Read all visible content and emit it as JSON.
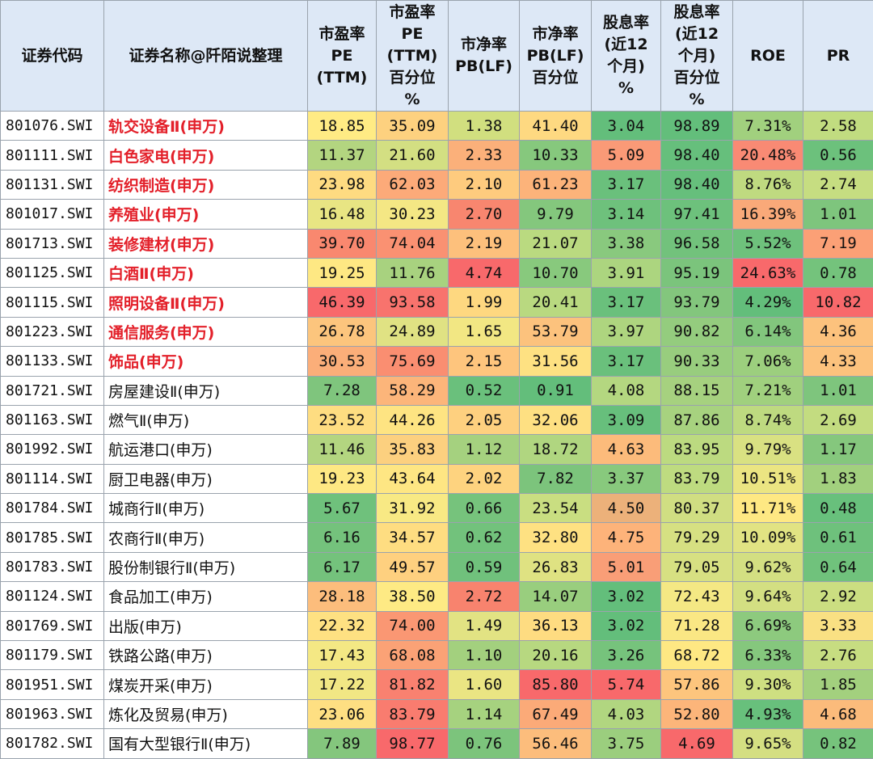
{
  "table": {
    "headers": [
      "证券代码",
      "证券名称@阡陌说整理",
      "市盈率\nPE\n(TTM)",
      "市盈率\nPE\n(TTM)\n百分位\n%",
      "市净率\nPB(LF)",
      "市净率\nPB(LF)\n百分位",
      "股息率\n(近12\n个月)\n%",
      "股息率\n(近12\n个月)\n百分位\n%",
      "ROE",
      "PR"
    ],
    "rows": [
      {
        "code": "801076.SWI",
        "name": "轨交设备Ⅱ(申万)",
        "highlight": true,
        "cells": [
          "18.85",
          "35.09",
          "1.38",
          "41.40",
          "3.04",
          "98.89",
          "7.31%",
          "2.58"
        ],
        "colors": [
          "#ffeb84",
          "#fdd17f",
          "#d1df7f",
          "#fed981",
          "#63be7b",
          "#63be7b",
          "#a1d07e",
          "#c1dc80"
        ]
      },
      {
        "code": "801111.SWI",
        "name": "白色家电(申万)",
        "highlight": true,
        "cells": [
          "11.37",
          "21.60",
          "2.33",
          "10.33",
          "5.09",
          "98.40",
          "20.48%",
          "0.56"
        ],
        "colors": [
          "#b3d580",
          "#d3df82",
          "#fbb07a",
          "#86c87d",
          "#fa9a77",
          "#66bf7c",
          "#f98a74",
          "#6cc17c"
        ]
      },
      {
        "code": "801131.SWI",
        "name": "纺织制造(申万)",
        "highlight": true,
        "cells": [
          "23.98",
          "62.03",
          "2.10",
          "61.23",
          "3.17",
          "98.40",
          "8.76%",
          "2.74"
        ],
        "colors": [
          "#fedb81",
          "#fcaa79",
          "#fecb7e",
          "#fcb37a",
          "#6ac07c",
          "#66bf7c",
          "#bfda80",
          "#c6dd81"
        ]
      },
      {
        "code": "801017.SWI",
        "name": "养殖业(申万)",
        "highlight": true,
        "cells": [
          "16.48",
          "30.23",
          "2.70",
          "9.79",
          "3.14",
          "97.41",
          "16.39%",
          "1.01"
        ],
        "colors": [
          "#e8e583",
          "#f4e784",
          "#f8866f",
          "#84c77d",
          "#6ec17c",
          "#6dc17c",
          "#f9a979",
          "#7ec57d"
        ]
      },
      {
        "code": "801713.SWI",
        "name": "装修建材(申万)",
        "highlight": true,
        "cells": [
          "39.70",
          "74.04",
          "2.19",
          "21.07",
          "3.38",
          "96.58",
          "5.52%",
          "7.19"
        ],
        "colors": [
          "#f9886f",
          "#fa9172",
          "#fdc07c",
          "#bada80",
          "#89c97e",
          "#72c27c",
          "#6ec17c",
          "#fba076"
        ]
      },
      {
        "code": "801125.SWI",
        "name": "白酒Ⅱ(申万)",
        "highlight": true,
        "cells": [
          "19.25",
          "11.76",
          "4.74",
          "10.70",
          "3.91",
          "95.19",
          "24.63%",
          "0.78"
        ],
        "colors": [
          "#fee883",
          "#a8d27f",
          "#f8696b",
          "#88c97d",
          "#acd57f",
          "#7bc47c",
          "#f8696b",
          "#74c37c"
        ]
      },
      {
        "code": "801115.SWI",
        "name": "照明设备Ⅱ(申万)",
        "highlight": true,
        "cells": [
          "46.39",
          "93.58",
          "1.99",
          "20.41",
          "3.17",
          "93.79",
          "4.29%",
          "10.82"
        ],
        "colors": [
          "#f8696b",
          "#f8736d",
          "#fed880",
          "#b9d980",
          "#6ac07c",
          "#83c67d",
          "#63be7b",
          "#f8696b"
        ]
      },
      {
        "code": "801223.SWI",
        "name": "通信服务(申万)",
        "highlight": true,
        "cells": [
          "26.78",
          "24.89",
          "1.65",
          "53.79",
          "3.97",
          "90.82",
          "6.14%",
          "4.36"
        ],
        "colors": [
          "#fcc57d",
          "#e0e283",
          "#f2e783",
          "#fcc27d",
          "#aed57f",
          "#94cc7e",
          "#82c67d",
          "#fcc27d"
        ]
      },
      {
        "code": "801133.SWI",
        "name": "饰品(申万)",
        "highlight": true,
        "cells": [
          "30.53",
          "75.69",
          "2.15",
          "31.56",
          "3.17",
          "90.33",
          "7.06%",
          "4.33"
        ],
        "colors": [
          "#fbae79",
          "#fa8e71",
          "#fec57d",
          "#fee182",
          "#6ac07c",
          "#98cd7e",
          "#9ccf7e",
          "#fcc27d"
        ]
      },
      {
        "code": "801721.SWI",
        "name": "房屋建设Ⅱ(申万)",
        "highlight": false,
        "cells": [
          "7.28",
          "58.29",
          "0.52",
          "0.91",
          "4.08",
          "88.15",
          "7.21%",
          "1.01"
        ],
        "colors": [
          "#7fc57d",
          "#fcb57a",
          "#6ac07c",
          "#63be7b",
          "#b4d780",
          "#a6d17f",
          "#a0d07e",
          "#7ec57d"
        ]
      },
      {
        "code": "801163.SWI",
        "name": "燃气Ⅱ(申万)",
        "highlight": false,
        "cells": [
          "23.52",
          "44.26",
          "2.05",
          "32.06",
          "3.09",
          "87.86",
          "8.74%",
          "2.69"
        ],
        "colors": [
          "#fedd81",
          "#fee482",
          "#fed07f",
          "#fee082",
          "#67bf7c",
          "#a7d27f",
          "#beda80",
          "#c3dc80"
        ]
      },
      {
        "code": "801992.SWI",
        "name": "航运港口(申万)",
        "highlight": false,
        "cells": [
          "11.46",
          "35.83",
          "1.12",
          "18.72",
          "4.63",
          "83.95",
          "9.79%",
          "1.17"
        ],
        "colors": [
          "#b3d580",
          "#fcd07f",
          "#a5d17f",
          "#b0d680",
          "#fcbb7b",
          "#bcda80",
          "#d9e182",
          "#85c77d"
        ]
      },
      {
        "code": "801114.SWI",
        "name": "厨卫电器(申万)",
        "highlight": false,
        "cells": [
          "19.23",
          "43.64",
          "2.02",
          "7.82",
          "3.37",
          "83.79",
          "10.51%",
          "1.83"
        ],
        "colors": [
          "#fee883",
          "#fee683",
          "#fed37f",
          "#7cc47c",
          "#88c97d",
          "#bedb80",
          "#ebe582",
          "#a2d07e"
        ]
      },
      {
        "code": "801784.SWI",
        "name": "城商行Ⅱ(申万)",
        "highlight": false,
        "cells": [
          "5.67",
          "31.92",
          "0.66",
          "23.54",
          "4.50",
          "80.37",
          "11.71%",
          "0.48"
        ],
        "colors": [
          "#6fc17c",
          "#f8e984",
          "#76c37c",
          "#c9de81",
          "#ecb17a",
          "#d0de82",
          "#fee883",
          "#68c07c"
        ]
      },
      {
        "code": "801785.SWI",
        "name": "农商行Ⅱ(申万)",
        "highlight": false,
        "cells": [
          "6.16",
          "34.57",
          "0.62",
          "32.80",
          "4.75",
          "79.29",
          "10.09%",
          "0.61"
        ],
        "colors": [
          "#74c27c",
          "#fedd81",
          "#72c27c",
          "#fee182",
          "#fdb37a",
          "#d6e082",
          "#e1e383",
          "#6ec17c"
        ]
      },
      {
        "code": "801783.SWI",
        "name": "股份制银行Ⅱ(申万)",
        "highlight": false,
        "cells": [
          "6.17",
          "49.57",
          "0.59",
          "26.83",
          "5.01",
          "79.05",
          "9.62%",
          "0.64"
        ],
        "colors": [
          "#74c27c",
          "#fed07f",
          "#70c17c",
          "#dfe282",
          "#f99e77",
          "#d7e082",
          "#d3df82",
          "#70c27c"
        ]
      },
      {
        "code": "801124.SWI",
        "name": "食品加工(申万)",
        "highlight": false,
        "cells": [
          "28.18",
          "38.50",
          "2.72",
          "14.07",
          "3.02",
          "72.43",
          "9.64%",
          "2.92"
        ],
        "colors": [
          "#fcbd7c",
          "#feea84",
          "#f8836e",
          "#99ce7e",
          "#63be7b",
          "#f4e884",
          "#d3df82",
          "#cbde81"
        ]
      },
      {
        "code": "801769.SWI",
        "name": "出版(申万)",
        "highlight": false,
        "cells": [
          "22.32",
          "74.00",
          "1.49",
          "36.13",
          "3.02",
          "71.28",
          "6.69%",
          "3.33"
        ],
        "colors": [
          "#fee182",
          "#fa9773",
          "#e2e383",
          "#fedc81",
          "#63be7b",
          "#fae784",
          "#8dca7e",
          "#f9e083"
        ]
      },
      {
        "code": "801179.SWI",
        "name": "铁路公路(申万)",
        "highlight": false,
        "cells": [
          "17.43",
          "68.08",
          "1.10",
          "20.16",
          "3.26",
          "68.72",
          "6.33%",
          "2.76"
        ],
        "colors": [
          "#f4e884",
          "#fba276",
          "#a3d07e",
          "#b7d880",
          "#76c37c",
          "#fee883",
          "#85c77d",
          "#c7dd81"
        ]
      },
      {
        "code": "801951.SWI",
        "name": "煤炭开采(申万)",
        "highlight": false,
        "cells": [
          "17.22",
          "81.82",
          "1.60",
          "85.80",
          "5.74",
          "57.86",
          "9.30%",
          "1.85"
        ],
        "colors": [
          "#f1e784",
          "#f98170",
          "#eae583",
          "#f8696b",
          "#f8696b",
          "#fdc57d",
          "#cedf81",
          "#a3d07e"
        ]
      },
      {
        "code": "801963.SWI",
        "name": "炼化及贸易(申万)",
        "highlight": false,
        "cells": [
          "23.06",
          "83.79",
          "1.14",
          "67.49",
          "4.03",
          "52.80",
          "4.93%",
          "4.68"
        ],
        "colors": [
          "#fedf82",
          "#f97c6f",
          "#a6d27f",
          "#fbaa78",
          "#b1d680",
          "#fcb57a",
          "#68c07c",
          "#fbbb7b"
        ]
      },
      {
        "code": "801782.SWI",
        "name": "国有大型银行Ⅱ(申万)",
        "highlight": false,
        "cells": [
          "7.89",
          "98.77",
          "0.76",
          "56.46",
          "3.75",
          "4.69",
          "9.65%",
          "0.82"
        ],
        "colors": [
          "#84c67d",
          "#f8696b",
          "#7cc47c",
          "#fcbd7c",
          "#9bce7e",
          "#f8696b",
          "#d4df82",
          "#76c37c"
        ]
      }
    ]
  }
}
